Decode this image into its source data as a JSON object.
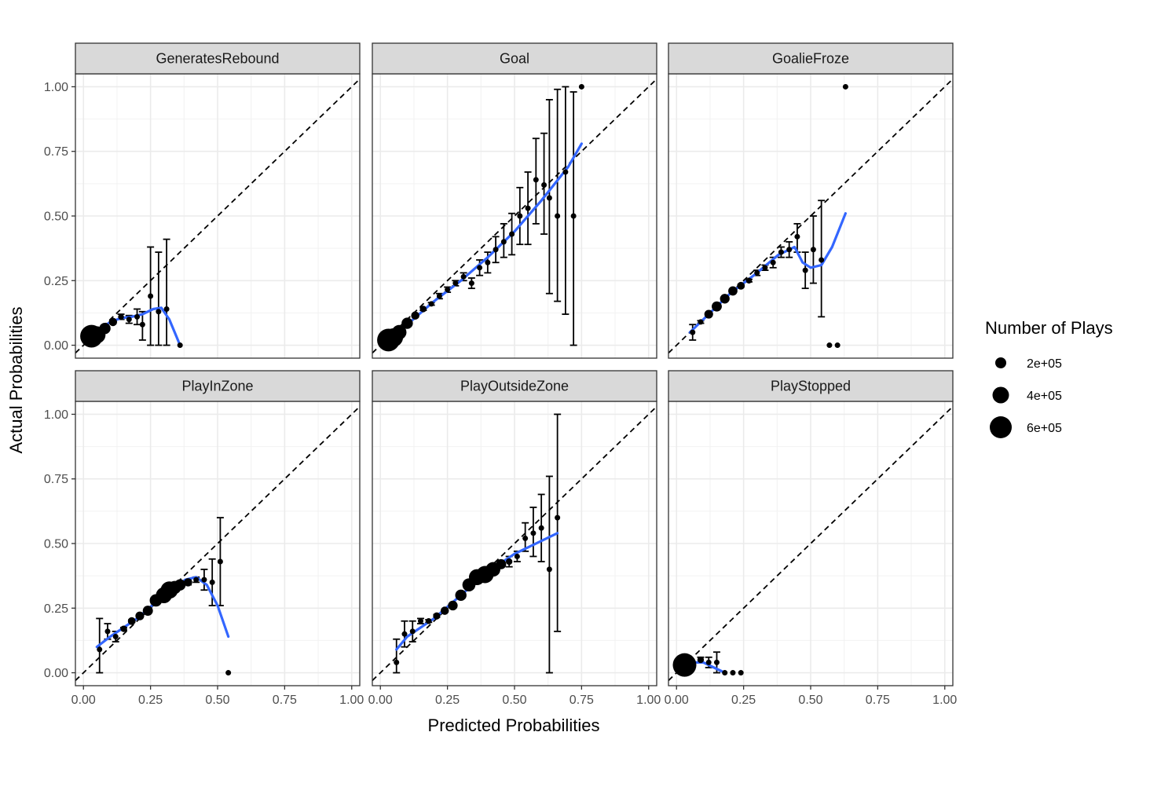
{
  "chart_data": {
    "type": "scatter",
    "xlabel": "Predicted Probabilities",
    "ylabel": "Actual Probabilities",
    "xlim": [
      -0.03,
      1.03
    ],
    "ylim": [
      -0.05,
      1.05
    ],
    "x_ticks": [
      "0.00",
      "0.25",
      "0.50",
      "0.75",
      "1.00"
    ],
    "y_ticks": [
      "0.00",
      "0.25",
      "0.50",
      "0.75",
      "1.00"
    ],
    "grid": true,
    "reference_line": "dashed y = x",
    "smooth_color": "#3366FF",
    "point_color": "#000000",
    "legend": {
      "title": "Number of Plays",
      "position": "right",
      "entries": [
        {
          "label": "2e+05",
          "value": 200000
        },
        {
          "label": "4e+05",
          "value": 400000
        },
        {
          "label": "6e+05",
          "value": 600000
        }
      ]
    },
    "panels": [
      {
        "title": "GeneratesRebound",
        "points": [
          [
            0.03,
            0.035,
            600000,
            0.03,
            0.04
          ],
          [
            0.05,
            0.04,
            350000,
            0.035,
            0.045
          ],
          [
            0.08,
            0.065,
            150000,
            0.06,
            0.07
          ],
          [
            0.11,
            0.09,
            80000,
            0.085,
            0.095
          ],
          [
            0.14,
            0.11,
            40000,
            0.1,
            0.12
          ],
          [
            0.17,
            0.1,
            20000,
            0.085,
            0.115
          ],
          [
            0.2,
            0.11,
            8000,
            0.08,
            0.14
          ],
          [
            0.22,
            0.08,
            3000,
            0.02,
            0.13
          ],
          [
            0.25,
            0.19,
            800,
            0,
            0.38
          ],
          [
            0.28,
            0.13,
            300,
            0,
            0.36
          ],
          [
            0.31,
            0.14,
            150,
            0,
            0.41
          ],
          [
            0.36,
            0,
            30,
            null,
            null
          ]
        ],
        "smooth": [
          [
            0.02,
            0.04
          ],
          [
            0.06,
            0.06
          ],
          [
            0.1,
            0.09
          ],
          [
            0.14,
            0.105
          ],
          [
            0.18,
            0.11
          ],
          [
            0.22,
            0.12
          ],
          [
            0.26,
            0.14
          ],
          [
            0.29,
            0.145
          ],
          [
            0.32,
            0.1
          ],
          [
            0.34,
            0.05
          ],
          [
            0.36,
            0
          ]
        ]
      },
      {
        "title": "Goal",
        "points": [
          [
            0.03,
            0.02,
            600000,
            0.015,
            0.025
          ],
          [
            0.05,
            0.03,
            400000,
            0.025,
            0.035
          ],
          [
            0.07,
            0.05,
            250000,
            0.045,
            0.055
          ],
          [
            0.1,
            0.085,
            150000,
            0.08,
            0.09
          ],
          [
            0.13,
            0.115,
            80000,
            0.11,
            0.12
          ],
          [
            0.16,
            0.14,
            50000,
            0.135,
            0.145
          ],
          [
            0.19,
            0.16,
            35000,
            0.155,
            0.165
          ],
          [
            0.22,
            0.19,
            20000,
            0.18,
            0.2
          ],
          [
            0.25,
            0.215,
            12000,
            0.205,
            0.225
          ],
          [
            0.28,
            0.24,
            8000,
            0.23,
            0.25
          ],
          [
            0.31,
            0.265,
            5000,
            0.25,
            0.28
          ],
          [
            0.34,
            0.24,
            3000,
            0.22,
            0.26
          ],
          [
            0.37,
            0.3,
            2000,
            0.27,
            0.33
          ],
          [
            0.4,
            0.32,
            1500,
            0.28,
            0.36
          ],
          [
            0.43,
            0.37,
            1000,
            0.32,
            0.42
          ],
          [
            0.46,
            0.4,
            700,
            0.34,
            0.47
          ],
          [
            0.49,
            0.43,
            500,
            0.35,
            0.51
          ],
          [
            0.52,
            0.5,
            300,
            0.39,
            0.61
          ],
          [
            0.55,
            0.53,
            200,
            0.39,
            0.67
          ],
          [
            0.58,
            0.64,
            120,
            0.47,
            0.8
          ],
          [
            0.61,
            0.62,
            90,
            0.43,
            0.82
          ],
          [
            0.63,
            0.57,
            60,
            0.2,
            0.95
          ],
          [
            0.66,
            0.5,
            40,
            0.17,
            0.99
          ],
          [
            0.69,
            0.67,
            25,
            0.12,
            1
          ],
          [
            0.72,
            0.5,
            15,
            0,
            0.98
          ],
          [
            0.75,
            1,
            8,
            null,
            null
          ]
        ],
        "smooth": [
          [
            0.02,
            0.01
          ],
          [
            0.1,
            0.08
          ],
          [
            0.2,
            0.17
          ],
          [
            0.3,
            0.25
          ],
          [
            0.4,
            0.34
          ],
          [
            0.5,
            0.44
          ],
          [
            0.6,
            0.56
          ],
          [
            0.7,
            0.69
          ],
          [
            0.75,
            0.78
          ]
        ]
      },
      {
        "title": "GoalieFroze",
        "points": [
          [
            0.06,
            0.05,
            5000,
            0.02,
            0.08
          ],
          [
            0.09,
            0.09,
            30000,
            0.085,
            0.095
          ],
          [
            0.12,
            0.12,
            90000,
            0.115,
            0.125
          ],
          [
            0.15,
            0.15,
            120000,
            0.145,
            0.155
          ],
          [
            0.18,
            0.18,
            110000,
            0.175,
            0.185
          ],
          [
            0.21,
            0.21,
            100000,
            0.205,
            0.215
          ],
          [
            0.24,
            0.23,
            70000,
            0.225,
            0.235
          ],
          [
            0.27,
            0.25,
            40000,
            0.245,
            0.255
          ],
          [
            0.3,
            0.28,
            20000,
            0.27,
            0.29
          ],
          [
            0.33,
            0.3,
            12000,
            0.29,
            0.31
          ],
          [
            0.36,
            0.32,
            8000,
            0.3,
            0.34
          ],
          [
            0.39,
            0.36,
            4000,
            0.34,
            0.38
          ],
          [
            0.42,
            0.37,
            2500,
            0.34,
            0.4
          ],
          [
            0.45,
            0.42,
            1500,
            0.36,
            0.47
          ],
          [
            0.48,
            0.29,
            800,
            0.22,
            0.36
          ],
          [
            0.51,
            0.37,
            400,
            0.24,
            0.5
          ],
          [
            0.54,
            0.33,
            150,
            0.11,
            0.56
          ],
          [
            0.57,
            0,
            40,
            null,
            null
          ],
          [
            0.6,
            0,
            25,
            null,
            null
          ],
          [
            0.63,
            1,
            10,
            null,
            null
          ]
        ],
        "smooth": [
          [
            0.05,
            0.05
          ],
          [
            0.1,
            0.1
          ],
          [
            0.2,
            0.2
          ],
          [
            0.3,
            0.28
          ],
          [
            0.38,
            0.35
          ],
          [
            0.44,
            0.38
          ],
          [
            0.47,
            0.32
          ],
          [
            0.5,
            0.3
          ],
          [
            0.54,
            0.31
          ],
          [
            0.58,
            0.38
          ],
          [
            0.63,
            0.51
          ]
        ]
      },
      {
        "title": "PlayInZone",
        "points": [
          [
            0.06,
            0.09,
            4000,
            0,
            0.21
          ],
          [
            0.09,
            0.16,
            15000,
            0.13,
            0.19
          ],
          [
            0.12,
            0.14,
            30000,
            0.12,
            0.16
          ],
          [
            0.15,
            0.17,
            50000,
            0.165,
            0.175
          ],
          [
            0.18,
            0.2,
            70000,
            0.195,
            0.205
          ],
          [
            0.21,
            0.22,
            90000,
            0.215,
            0.225
          ],
          [
            0.24,
            0.24,
            120000,
            0.235,
            0.245
          ],
          [
            0.27,
            0.28,
            180000,
            0.275,
            0.285
          ],
          [
            0.3,
            0.3,
            300000,
            0.295,
            0.305
          ],
          [
            0.32,
            0.32,
            350000,
            0.315,
            0.325
          ],
          [
            0.34,
            0.33,
            200000,
            0.325,
            0.335
          ],
          [
            0.36,
            0.34,
            150000,
            0.335,
            0.345
          ],
          [
            0.39,
            0.35,
            80000,
            0.34,
            0.36
          ],
          [
            0.42,
            0.36,
            30000,
            0.35,
            0.37
          ],
          [
            0.45,
            0.36,
            8000,
            0.32,
            0.4
          ],
          [
            0.48,
            0.35,
            3000,
            0.26,
            0.44
          ],
          [
            0.51,
            0.43,
            800,
            0.26,
            0.6
          ],
          [
            0.54,
            0,
            40,
            null,
            null
          ]
        ],
        "smooth": [
          [
            0.05,
            0.1
          ],
          [
            0.1,
            0.14
          ],
          [
            0.2,
            0.21
          ],
          [
            0.3,
            0.3
          ],
          [
            0.38,
            0.36
          ],
          [
            0.42,
            0.37
          ],
          [
            0.46,
            0.34
          ],
          [
            0.5,
            0.26
          ],
          [
            0.54,
            0.14
          ]
        ]
      },
      {
        "title": "PlayOutsideZone",
        "points": [
          [
            0.06,
            0.04,
            2000,
            0,
            0.13
          ],
          [
            0.09,
            0.15,
            5000,
            0.1,
            0.2
          ],
          [
            0.12,
            0.16,
            10000,
            0.12,
            0.2
          ],
          [
            0.15,
            0.2,
            25000,
            0.19,
            0.21
          ],
          [
            0.18,
            0.2,
            40000,
            0.195,
            0.205
          ],
          [
            0.21,
            0.22,
            60000,
            0.215,
            0.225
          ],
          [
            0.24,
            0.24,
            80000,
            0.235,
            0.245
          ],
          [
            0.27,
            0.26,
            110000,
            0.255,
            0.265
          ],
          [
            0.3,
            0.3,
            150000,
            0.295,
            0.305
          ],
          [
            0.33,
            0.34,
            200000,
            0.335,
            0.345
          ],
          [
            0.36,
            0.37,
            300000,
            0.365,
            0.375
          ],
          [
            0.39,
            0.38,
            350000,
            0.375,
            0.385
          ],
          [
            0.42,
            0.4,
            250000,
            0.395,
            0.405
          ],
          [
            0.45,
            0.42,
            120000,
            0.41,
            0.43
          ],
          [
            0.48,
            0.43,
            50000,
            0.41,
            0.45
          ],
          [
            0.51,
            0.45,
            20000,
            0.43,
            0.47
          ],
          [
            0.54,
            0.52,
            8000,
            0.47,
            0.58
          ],
          [
            0.57,
            0.54,
            3000,
            0.45,
            0.64
          ],
          [
            0.6,
            0.56,
            1000,
            0.43,
            0.69
          ],
          [
            0.63,
            0.4,
            300,
            0,
            0.76
          ],
          [
            0.66,
            0.6,
            80,
            0.16,
            1
          ]
        ],
        "smooth": [
          [
            0.06,
            0.09
          ],
          [
            0.1,
            0.14
          ],
          [
            0.2,
            0.21
          ],
          [
            0.3,
            0.3
          ],
          [
            0.4,
            0.39
          ],
          [
            0.5,
            0.46
          ],
          [
            0.6,
            0.51
          ],
          [
            0.66,
            0.54
          ]
        ]
      },
      {
        "title": "PlayStopped",
        "points": [
          [
            0.03,
            0.03,
            650000,
            0.025,
            0.035
          ],
          [
            0.09,
            0.05,
            50000,
            0.04,
            0.06
          ],
          [
            0.12,
            0.04,
            8000,
            0.02,
            0.06
          ],
          [
            0.15,
            0.04,
            1500,
            0,
            0.08
          ],
          [
            0.18,
            0,
            300,
            null,
            null
          ],
          [
            0.21,
            0,
            100,
            null,
            null
          ],
          [
            0.24,
            0,
            40,
            null,
            null
          ]
        ],
        "smooth": [
          [
            0.02,
            0.03
          ],
          [
            0.06,
            0.04
          ],
          [
            0.1,
            0.04
          ],
          [
            0.14,
            0.02
          ],
          [
            0.18,
            0
          ]
        ]
      }
    ]
  }
}
